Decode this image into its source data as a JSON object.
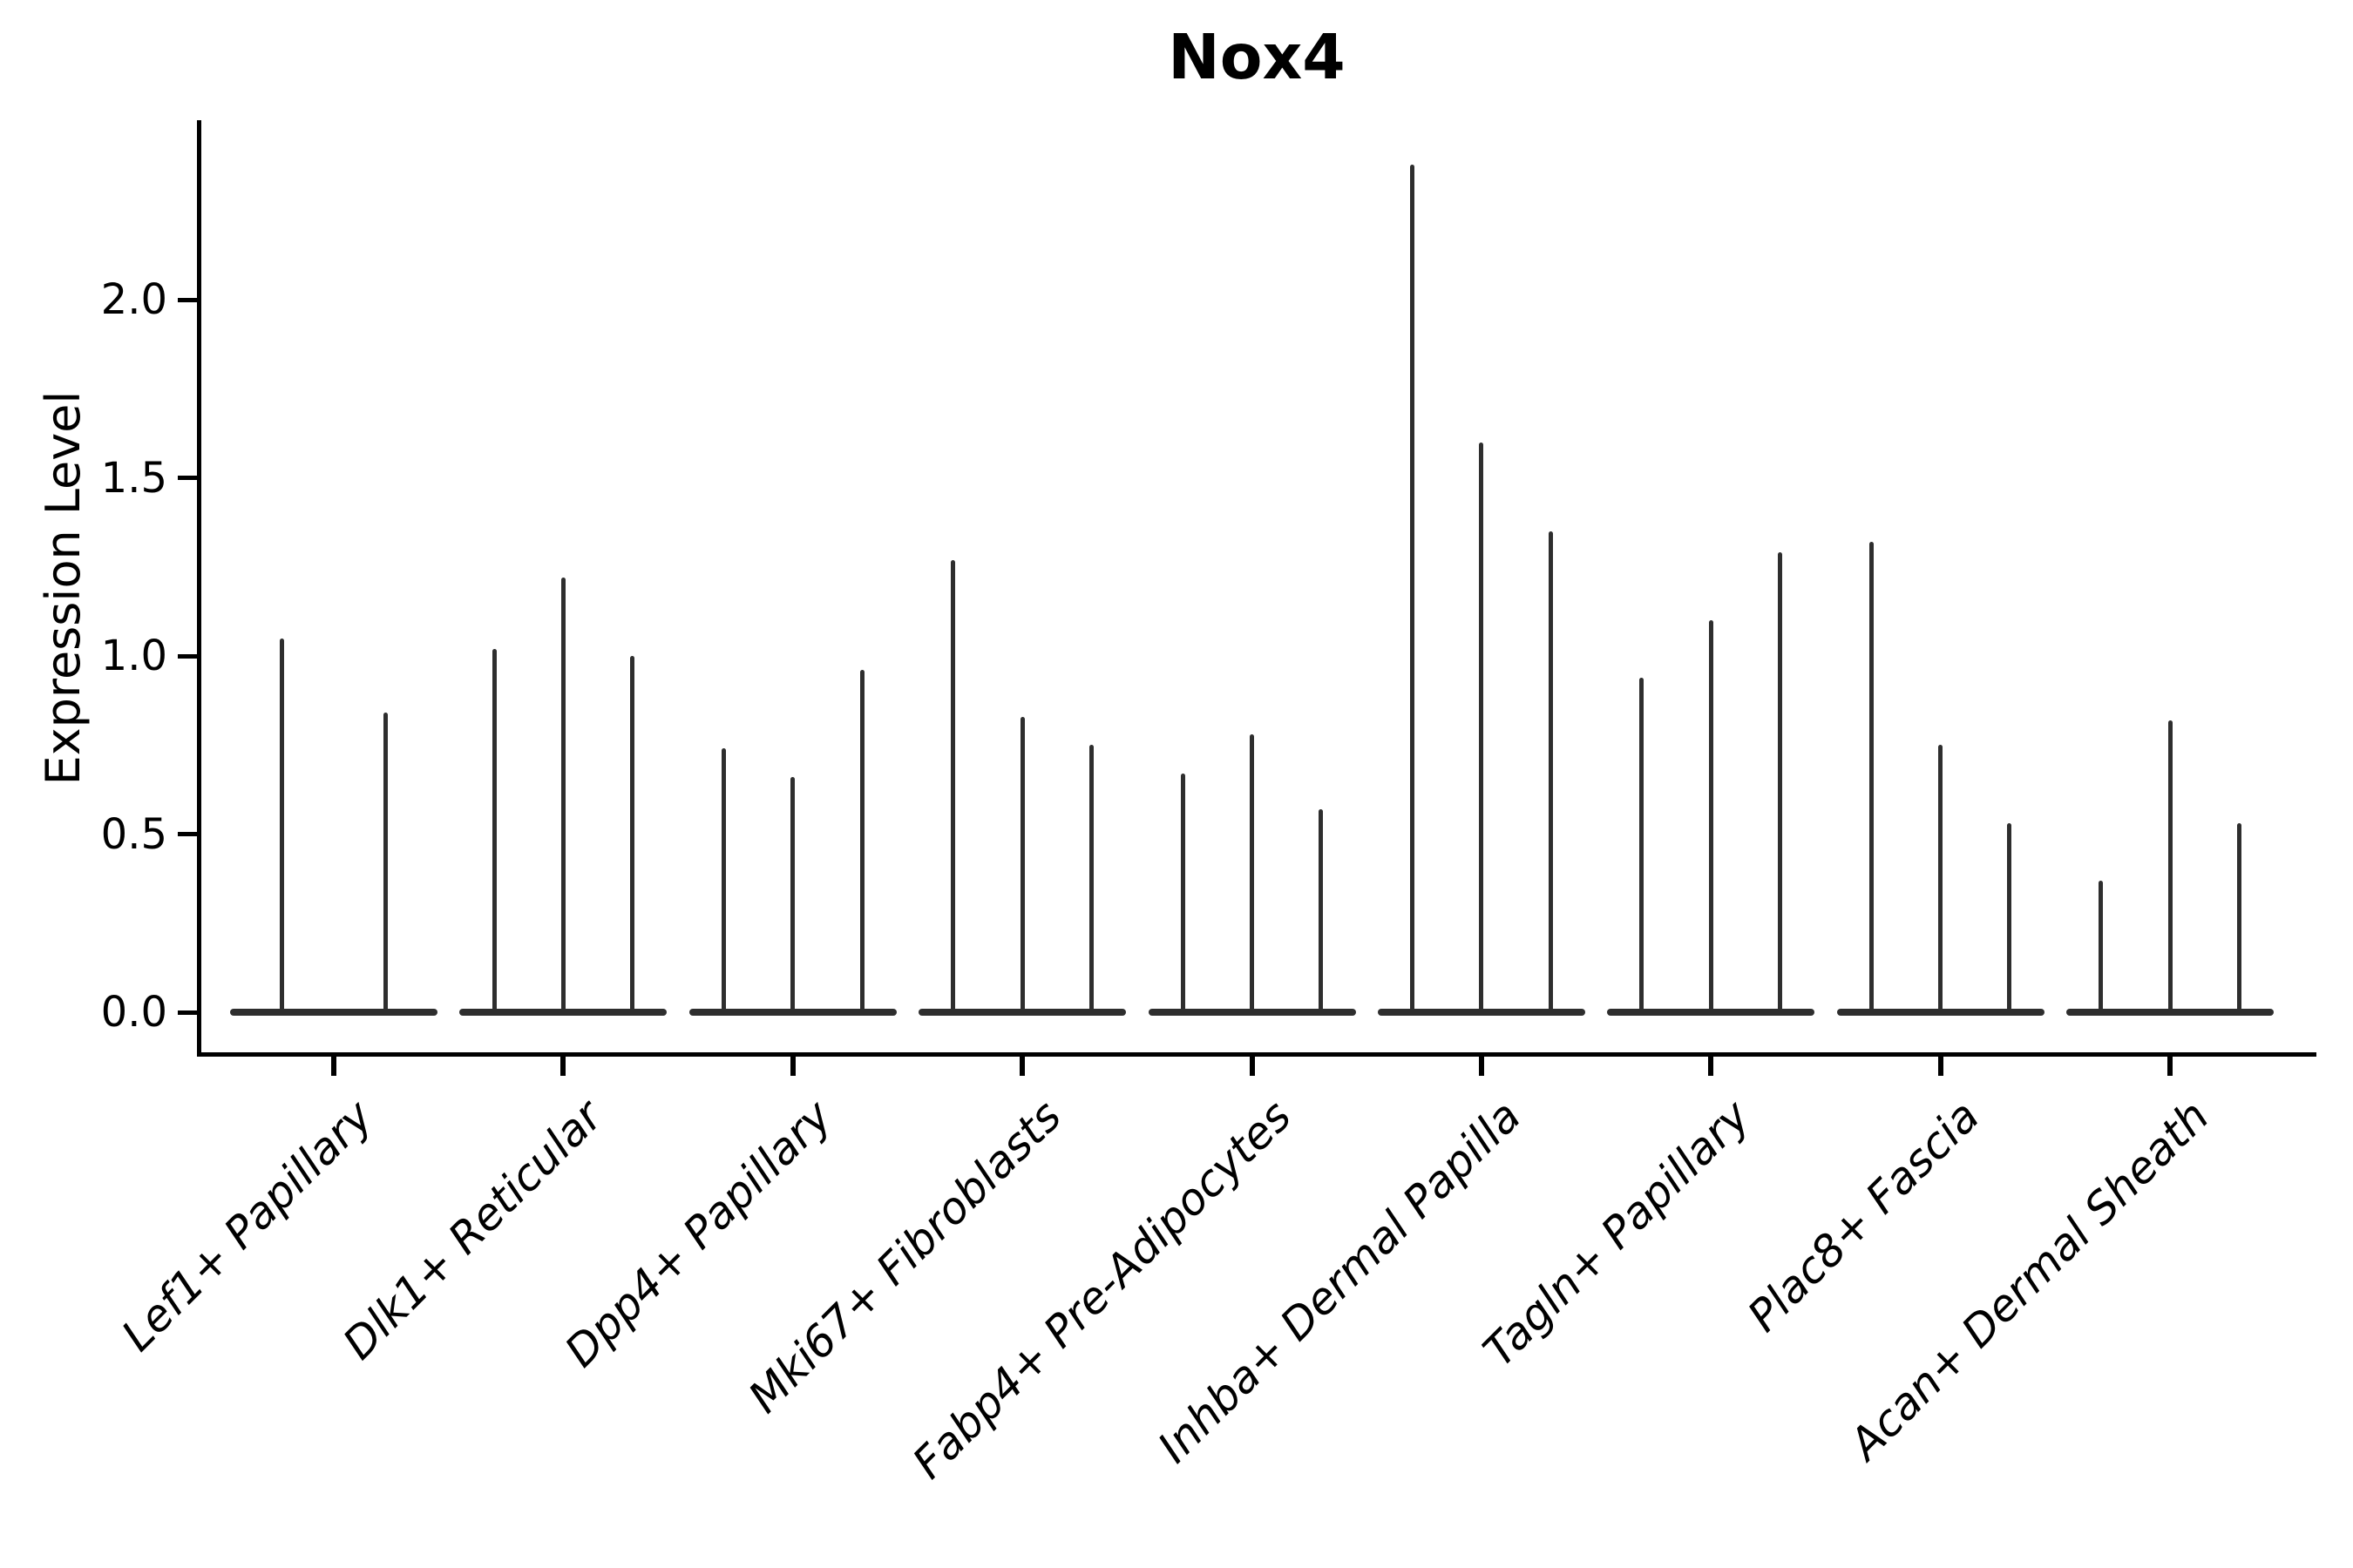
{
  "figure": {
    "title": "Nox4"
  },
  "y_axis": {
    "label": "Expression Level"
  },
  "chart_data": {
    "type": "violin",
    "title": "Nox4",
    "subtitle": "",
    "xlabel": "",
    "ylabel": "Expression Level",
    "yticks": [
      0.0,
      0.5,
      1.0,
      1.5,
      2.0
    ],
    "ylim": [
      -0.06,
      2.5
    ],
    "grid": false,
    "legend": false,
    "description": "Stacked-violin style expression plot; each category shows 2-3 collapsed violins (flat base at 0 with a thin spike up to the maximum expression value).",
    "categories": [
      "Lef1+ Papillary",
      "Dlk1+ Reticular",
      "Dpp4+ Papillary",
      "Mki67+ Fibroblasts",
      "Fabp4+ Pre-Adipocytes",
      "Inhba+ Dermal Papilla",
      "Tagln+ Papillary",
      "Plac8+ Fascia",
      "Acan+ Dermal Sheath"
    ],
    "groups": [
      {
        "category": "Lef1+ Papillary",
        "spike_max_values": [
          1.05,
          0.84
        ]
      },
      {
        "category": "Dlk1+ Reticular",
        "spike_max_values": [
          1.02,
          1.22,
          1.0
        ]
      },
      {
        "category": "Dpp4+ Papillary",
        "spike_max_values": [
          0.74,
          0.66,
          0.96
        ]
      },
      {
        "category": "Mki67+ Fibroblasts",
        "spike_max_values": [
          1.27,
          0.83,
          0.75
        ]
      },
      {
        "category": "Fabp4+ Pre-Adipocytes",
        "spike_max_values": [
          0.67,
          0.78,
          0.57
        ]
      },
      {
        "category": "Inhba+ Dermal Papilla",
        "spike_max_values": [
          2.38,
          1.6,
          1.35
        ]
      },
      {
        "category": "Tagln+ Papillary",
        "spike_max_values": [
          0.94,
          1.1,
          1.29
        ]
      },
      {
        "category": "Plac8+ Fascia",
        "spike_max_values": [
          1.32,
          0.75,
          0.53
        ]
      },
      {
        "category": "Acan+ Dermal Sheath",
        "spike_max_values": [
          0.37,
          0.82,
          0.53
        ]
      }
    ],
    "colors": {
      "violin": "#2e2e2e",
      "axis": "#000000",
      "text": "#000000",
      "background": "#ffffff"
    }
  }
}
